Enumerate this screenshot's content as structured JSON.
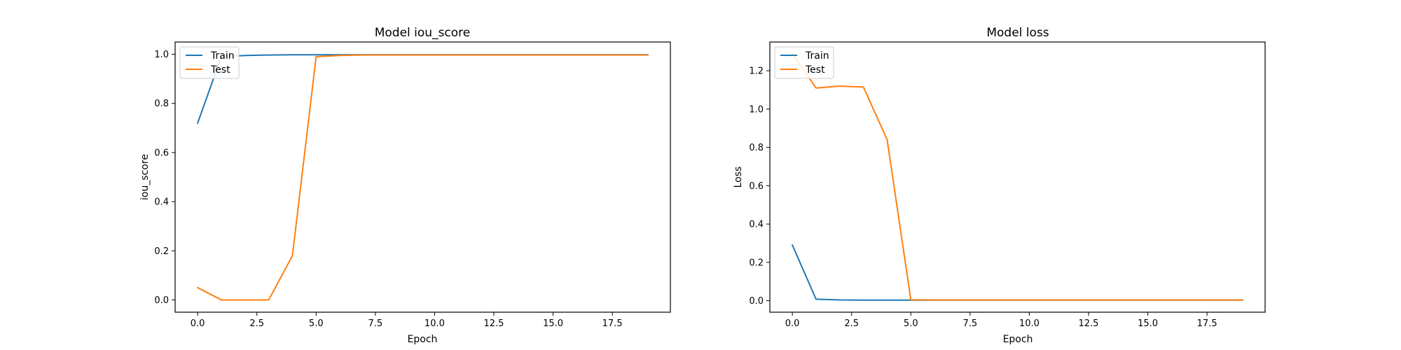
{
  "colors": {
    "train": "#1f77b4",
    "test": "#ff7f0e",
    "axis": "#000000",
    "legend_border": "#cccccc"
  },
  "chart_data": [
    {
      "type": "line",
      "title": "Model iou_score",
      "xlabel": "Epoch",
      "ylabel": "iou_score",
      "xlim": [
        -0.95,
        19.95
      ],
      "ylim": [
        -0.05,
        1.05
      ],
      "xticks": [
        0,
        2.5,
        5,
        7.5,
        10,
        12.5,
        15,
        17.5
      ],
      "xtick_labels": [
        "0.0",
        "2.5",
        "5.0",
        "7.5",
        "10.0",
        "12.5",
        "15.0",
        "17.5"
      ],
      "yticks": [
        0,
        0.2,
        0.4,
        0.6,
        0.8,
        1.0
      ],
      "ytick_labels": [
        "0.0",
        "0.2",
        "0.4",
        "0.6",
        "0.8",
        "1.0"
      ],
      "grid": false,
      "legend_position": "upper left",
      "x": [
        0,
        1,
        2,
        3,
        4,
        5,
        6,
        7,
        8,
        9,
        10,
        11,
        12,
        13,
        14,
        15,
        16,
        17,
        18,
        19
      ],
      "series": [
        {
          "name": "Train",
          "color": "#1f77b4",
          "values": [
            0.72,
            0.99,
            0.995,
            0.997,
            0.998,
            0.998,
            0.998,
            0.998,
            0.998,
            0.998,
            0.998,
            0.998,
            0.998,
            0.998,
            0.998,
            0.998,
            0.998,
            0.998,
            0.998,
            0.998
          ]
        },
        {
          "name": "Test",
          "color": "#ff7f0e",
          "values": [
            0.05,
            0.0,
            0.0,
            0.0,
            0.18,
            0.99,
            0.995,
            0.997,
            0.997,
            0.997,
            0.997,
            0.997,
            0.997,
            0.997,
            0.997,
            0.997,
            0.997,
            0.997,
            0.997,
            0.997
          ]
        }
      ]
    },
    {
      "type": "line",
      "title": "Model loss",
      "xlabel": "Epoch",
      "ylabel": "Loss",
      "xlim": [
        -0.95,
        19.95
      ],
      "ylim": [
        -0.06,
        1.35
      ],
      "xticks": [
        0,
        2.5,
        5,
        7.5,
        10,
        12.5,
        15,
        17.5
      ],
      "xtick_labels": [
        "0.0",
        "2.5",
        "5.0",
        "7.5",
        "10.0",
        "12.5",
        "15.0",
        "17.5"
      ],
      "yticks": [
        0,
        0.2,
        0.4,
        0.6,
        0.8,
        1.0,
        1.2
      ],
      "ytick_labels": [
        "0.0",
        "0.2",
        "0.4",
        "0.6",
        "0.8",
        "1.0",
        "1.2"
      ],
      "grid": false,
      "legend_position": "upper left",
      "x": [
        0,
        1,
        2,
        3,
        4,
        5,
        6,
        7,
        8,
        9,
        10,
        11,
        12,
        13,
        14,
        15,
        16,
        17,
        18,
        19
      ],
      "series": [
        {
          "name": "Train",
          "color": "#1f77b4",
          "values": [
            0.29,
            0.008,
            0.004,
            0.003,
            0.003,
            0.003,
            0.003,
            0.003,
            0.003,
            0.003,
            0.003,
            0.003,
            0.003,
            0.003,
            0.003,
            0.003,
            0.003,
            0.003,
            0.003,
            0.003
          ]
        },
        {
          "name": "Test",
          "color": "#ff7f0e",
          "values": [
            1.29,
            1.11,
            1.12,
            1.115,
            0.84,
            0.005,
            0.004,
            0.004,
            0.004,
            0.004,
            0.004,
            0.004,
            0.004,
            0.004,
            0.004,
            0.004,
            0.004,
            0.004,
            0.004,
            0.004
          ]
        }
      ]
    }
  ]
}
